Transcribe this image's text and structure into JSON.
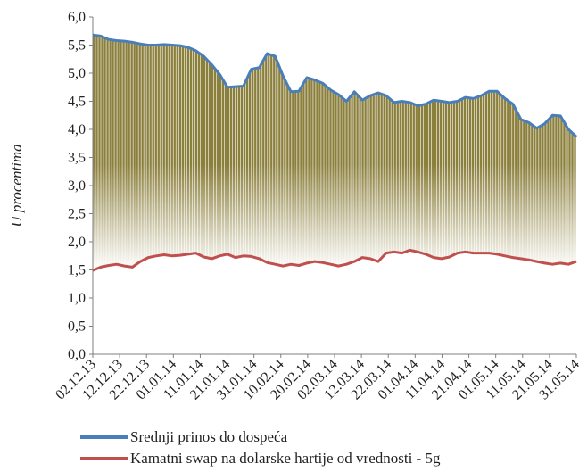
{
  "chart_data": {
    "type": "line",
    "title": "",
    "ylabel": "U procentima",
    "xlabel": "",
    "ylim": [
      0,
      6
    ],
    "y_ticks": [
      "0,0",
      "0,5",
      "1,0",
      "1,5",
      "2,0",
      "2,5",
      "3,0",
      "3,5",
      "4,0",
      "4,5",
      "5,0",
      "5,5",
      "6,0"
    ],
    "x_tick_labels": [
      "02.12.13",
      "12.12.13",
      "22.12.13",
      "01.01.14",
      "11.01.14",
      "21.01.14",
      "31.01.14",
      "10.02.14",
      "20.02.14",
      "02.03.14",
      "12.03.14",
      "22.03.14",
      "01.04.14",
      "11.04.14",
      "21.04.14",
      "01.05.14",
      "11.05.14",
      "21.05.14",
      "31.05.14"
    ],
    "grid": false,
    "legend_position": "bottom",
    "fill_between": true,
    "fill_colors": {
      "top": "#8b7f3c",
      "bottom": "#ffffff"
    },
    "series": [
      {
        "name": "Srednji prinos do dospeća",
        "color": "#4a7ebb",
        "values": [
          5.68,
          5.66,
          5.6,
          5.58,
          5.57,
          5.55,
          5.52,
          5.5,
          5.5,
          5.51,
          5.5,
          5.49,
          5.46,
          5.4,
          5.3,
          5.15,
          4.98,
          4.75,
          4.76,
          4.77,
          5.07,
          5.1,
          5.35,
          5.3,
          4.95,
          4.67,
          4.68,
          4.92,
          4.88,
          4.82,
          4.7,
          4.62,
          4.5,
          4.67,
          4.52,
          4.6,
          4.65,
          4.6,
          4.48,
          4.5,
          4.48,
          4.42,
          4.45,
          4.52,
          4.5,
          4.48,
          4.5,
          4.57,
          4.55,
          4.6,
          4.68,
          4.68,
          4.55,
          4.45,
          4.18,
          4.12,
          4.02,
          4.1,
          4.25,
          4.24,
          4.0,
          3.87
        ]
      },
      {
        "name": "Kamatni swap na dolarske hartije od vrednosti - 5g",
        "color": "#c0504d",
        "values": [
          1.49,
          1.55,
          1.58,
          1.6,
          1.57,
          1.55,
          1.65,
          1.72,
          1.75,
          1.77,
          1.75,
          1.76,
          1.78,
          1.8,
          1.73,
          1.7,
          1.75,
          1.78,
          1.72,
          1.75,
          1.74,
          1.7,
          1.63,
          1.6,
          1.57,
          1.6,
          1.58,
          1.62,
          1.65,
          1.63,
          1.6,
          1.57,
          1.6,
          1.65,
          1.72,
          1.7,
          1.65,
          1.8,
          1.82,
          1.8,
          1.85,
          1.82,
          1.78,
          1.72,
          1.7,
          1.73,
          1.8,
          1.82,
          1.8,
          1.8,
          1.8,
          1.78,
          1.75,
          1.72,
          1.7,
          1.68,
          1.65,
          1.62,
          1.6,
          1.62,
          1.6,
          1.65
        ]
      }
    ]
  }
}
